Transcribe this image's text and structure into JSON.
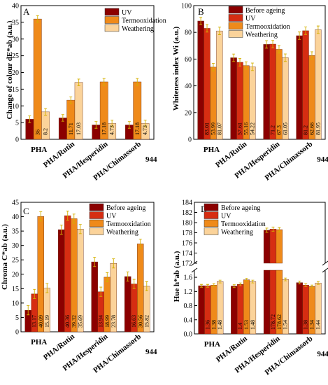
{
  "colors": {
    "uv_dark": "#8b0000",
    "uv": "#d62d12",
    "termo": "#ef8a1a",
    "weather": "#fbd39a",
    "errbar": "#d4b000"
  },
  "chart_data": [
    {
      "id": "A",
      "panel_letter": "A",
      "type": "bar",
      "ylabel": "Change of colour dE*ab (a.u.)",
      "xlabel": "",
      "ylim": [
        0,
        40
      ],
      "yticks": [
        0,
        5,
        10,
        15,
        20,
        25,
        30,
        35,
        40
      ],
      "categories": [
        "PHA",
        "PHA/Rutin",
        "PHA/Hesperidin",
        "PHA/Chimassorb 944"
      ],
      "legend": {
        "position": "top-right",
        "entries": [
          "UV",
          "Termooxidation",
          "Weathering"
        ]
      },
      "series": [
        {
          "name": "UV",
          "color_key": "uv_dark",
          "values": [
            6,
            6.4,
            4.3,
            4.3
          ],
          "labels": [
            "",
            "",
            "",
            ""
          ]
        },
        {
          "name": "Termooxidation",
          "color_key": "termo",
          "values": [
            36,
            11.71,
            17.18,
            17.18
          ],
          "labels": [
            "36",
            "11.71",
            "17.18",
            "17.18"
          ]
        },
        {
          "name": "Weathering",
          "color_key": "weather",
          "values": [
            8.2,
            17.03,
            4.73,
            4.73
          ],
          "labels": [
            "8.2",
            "17.03",
            "4.73",
            "4.73"
          ]
        }
      ]
    },
    {
      "id": "B",
      "panel_letter": "B",
      "type": "bar",
      "ylabel": "Whiteness index Wi (a.u.)",
      "xlabel": "",
      "ylim": [
        0,
        100
      ],
      "yticks": [
        0,
        20,
        40,
        60,
        80,
        100
      ],
      "categories": [
        "PHA",
        "PHA/Rutin",
        "PHA/Hesperidin",
        "PHA/Chimassorb 944"
      ],
      "legend": {
        "position": "top-right",
        "entries": [
          "Before ageing",
          "UV",
          "Termooxidation",
          "Weathering"
        ]
      },
      "series": [
        {
          "name": "Before ageing",
          "color_key": "uv_dark",
          "values": [
            88.5,
            61,
            71,
            77.5
          ],
          "labels": [
            "",
            "",
            "",
            ""
          ]
        },
        {
          "name": "UV",
          "color_key": "uv",
          "values": [
            83.01,
            57.61,
            71.2,
            81.2
          ],
          "labels": [
            "83.01",
            "57.61",
            "71.2",
            "81.2"
          ]
        },
        {
          "name": "Termooxidation",
          "color_key": "termo",
          "values": [
            53.99,
            55.16,
            67.3,
            62.66
          ],
          "labels": [
            "53.99",
            "55.16",
            "67.3",
            "62.66"
          ]
        },
        {
          "name": "Weathering",
          "color_key": "weather",
          "values": [
            81.07,
            54.22,
            61.05,
            81.95
          ],
          "labels": [
            "81.07",
            "54.22",
            "61.05",
            "81.95"
          ]
        }
      ]
    },
    {
      "id": "C",
      "panel_letter": "C",
      "type": "bar",
      "ylabel": "Chroma  C*ab (a.u.)",
      "xlabel": "",
      "ylim": [
        0,
        45
      ],
      "yticks": [
        0,
        5,
        10,
        15,
        20,
        25,
        30,
        35,
        40,
        45
      ],
      "categories": [
        "PHA",
        "PHA/Rutin",
        "PHA/Hesperidin",
        "PHA/Chimassorb 944"
      ],
      "legend": {
        "position": "top-right",
        "entries": [
          "Before ageing",
          "UV",
          "Termooxidation",
          "Weathering"
        ]
      },
      "series": [
        {
          "name": "Before ageing",
          "color_key": "uv_dark",
          "values": [
            7.5,
            35.5,
            24.3,
            19.2
          ],
          "labels": [
            "",
            "",
            "",
            ""
          ]
        },
        {
          "name": "UV",
          "color_key": "uv",
          "values": [
            13.17,
            40.36,
            13.94,
            16.63
          ],
          "labels": [
            "13.17",
            "40.36",
            "13.94",
            "16.63"
          ]
        },
        {
          "name": "Termooxidation",
          "color_key": "termo",
          "values": [
            40.09,
            39.32,
            18.99,
            30.56
          ],
          "labels": [
            "40.09",
            "39.32",
            "18.99",
            "30.56"
          ]
        },
        {
          "name": "Weathering",
          "color_key": "weather",
          "values": [
            15.19,
            35.69,
            23.78,
            15.82
          ],
          "labels": [
            "15.19",
            "35.69",
            "23.78",
            "15.82"
          ]
        }
      ]
    },
    {
      "id": "D",
      "panel_letter": "D",
      "type": "bar",
      "ylabel": "Hue h*ab (a.u.)",
      "xlabel": "",
      "broken_axis": true,
      "lower_ylim": [
        0,
        1.8
      ],
      "lower_yticks": [
        "0.0",
        "0.4",
        "0.8",
        "1.2",
        "1.6"
      ],
      "upper_ylim": [
        172,
        184
      ],
      "upper_yticks": [
        "172",
        "174",
        "176",
        "178",
        "180",
        "182",
        "184"
      ],
      "categories": [
        "PHA",
        "PHA/Rutin",
        "PHA/Hesperidin",
        "PHA/Chimassorb 944"
      ],
      "legend": {
        "position": "top-left",
        "entries": [
          "Before ageing",
          "UV",
          "Termooxidation",
          "Weathering"
        ]
      },
      "series": [
        {
          "name": "Before ageing",
          "color_key": "uv_dark",
          "values": [
            1.36,
            1.35,
            178.5,
            1.45
          ],
          "labels": [
            "",
            "",
            "",
            ""
          ]
        },
        {
          "name": "UV",
          "color_key": "uv",
          "values": [
            1.36,
            1.4,
            178.72,
            1.38
          ],
          "labels": [
            "1.36",
            "1.4",
            "178.72",
            "1.38"
          ]
        },
        {
          "name": "Termooxidation",
          "color_key": "termo",
          "values": [
            1.38,
            1.53,
            178.62,
            1.34
          ],
          "labels": [
            "1.38",
            "1.53",
            "178.62",
            "1.34"
          ]
        },
        {
          "name": "Weathering",
          "color_key": "weather",
          "values": [
            1.48,
            1.48,
            1.54,
            1.44
          ],
          "labels": [
            "1.48",
            "1.48",
            "1.54",
            "1.44"
          ]
        }
      ]
    }
  ]
}
